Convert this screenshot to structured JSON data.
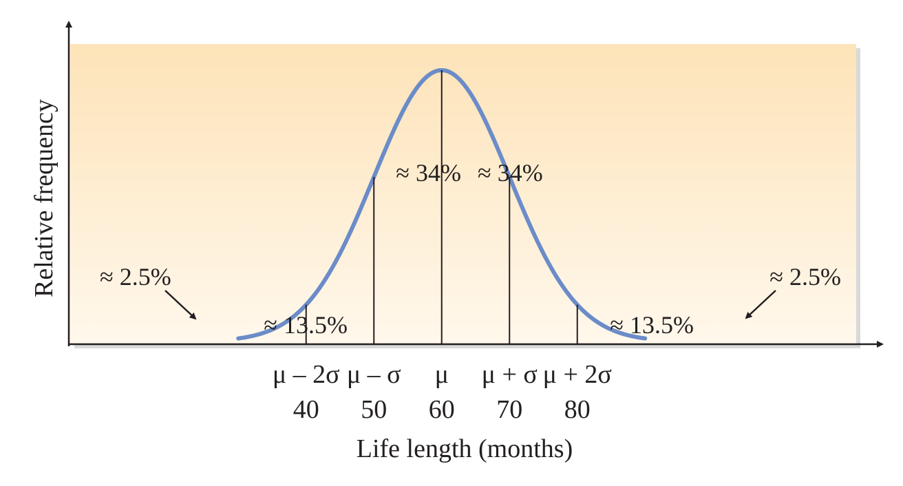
{
  "chart_data": {
    "type": "line",
    "title": "",
    "xlabel": "Life length (months)",
    "ylabel": "Relative frequency",
    "mean": 60,
    "sd": 10,
    "xlim": [
      5,
      125
    ],
    "curve_extent": [
      30,
      90
    ],
    "ticks": [
      {
        "value": 40,
        "symbol": "μ – 2σ",
        "label": "40"
      },
      {
        "value": 50,
        "symbol": "μ – σ",
        "label": "50"
      },
      {
        "value": 60,
        "symbol": "μ",
        "label": "60"
      },
      {
        "value": 70,
        "symbol": "μ + σ",
        "label": "70"
      },
      {
        "value": 80,
        "symbol": "μ + 2σ",
        "label": "80"
      }
    ],
    "regions": [
      {
        "from": 60,
        "to": 70,
        "label": "≈ 34%",
        "anchor": "inside-left-high"
      },
      {
        "from": 50,
        "to": 60,
        "label": "≈ 34%",
        "anchor": "inside-right-high"
      },
      {
        "from": 40,
        "to": 50,
        "label": "≈ 13.5%",
        "anchor": "inside-bottom"
      },
      {
        "from": 70,
        "to": 80,
        "label": "≈ 13.5%",
        "anchor": "inside-bottom"
      },
      {
        "from": null,
        "to": 40,
        "label": "≈ 2.5%",
        "anchor": "callout-left"
      },
      {
        "from": 80,
        "to": null,
        "label": "≈ 2.5%",
        "anchor": "callout-right"
      }
    ],
    "colors": {
      "curve": "#6b8cc8",
      "background_top": "#fde3b8",
      "background_bottom": "#fff8ec",
      "axis": "#231f20"
    }
  }
}
